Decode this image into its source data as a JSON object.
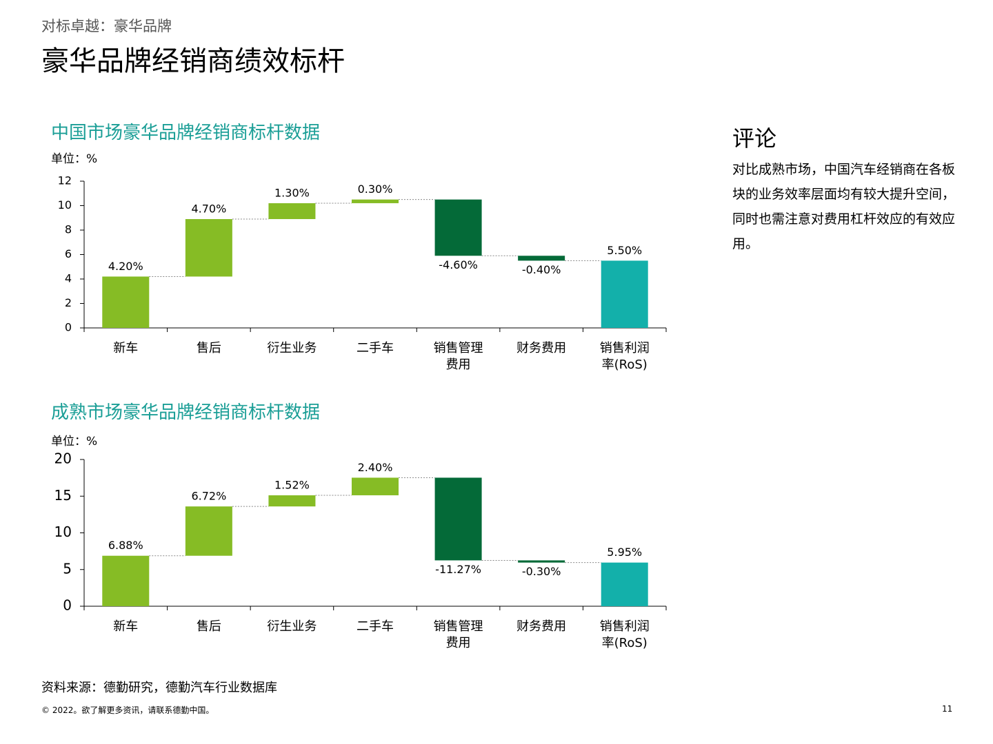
{
  "header": {
    "kicker": "对标卓越：豪华品牌",
    "title": "豪华品牌经销商绩效标杆"
  },
  "commentary": {
    "title": "评论",
    "body": "对比成熟市场，中国汽车经销商在各板块的业务效率层面均有较大提升空间，同时也需注意对费用杠杆效应的有效应用。"
  },
  "source": "资料来源：德勤研究，德勤汽车行业数据库",
  "footer": {
    "copyright": "© 2022。欲了解更多资讯，请联系德勤中国。",
    "page": "11"
  },
  "chart_data": [
    {
      "type": "waterfall",
      "title": "中国市场豪华品牌经销商标杆数据",
      "unit": "单位：%",
      "categories": [
        "新车",
        "售后",
        "衍生业务",
        "二手车",
        "销售管理费用",
        "财务费用",
        "销售利润率(RoS)"
      ],
      "values": [
        4.2,
        4.7,
        1.3,
        0.3,
        -4.6,
        -0.4,
        5.5
      ],
      "value_labels": [
        "4.20%",
        "4.70%",
        "1.30%",
        "0.30%",
        "-4.60%",
        "-0.40%",
        "5.50%"
      ],
      "measure": [
        "relative",
        "relative",
        "relative",
        "relative",
        "relative",
        "relative",
        "total"
      ],
      "colors": {
        "increase": "#86bc25",
        "decrease": "#046a38",
        "total": "#13b0aa"
      },
      "ylim": [
        0,
        12
      ],
      "yticks": [
        0,
        2,
        4,
        6,
        8,
        10,
        12
      ]
    },
    {
      "type": "waterfall",
      "title": "成熟市场豪华品牌经销商标杆数据",
      "unit": "单位：%",
      "categories": [
        "新车",
        "售后",
        "衍生业务",
        "二手车",
        "销售管理费用",
        "财务费用",
        "销售利润率(RoS)"
      ],
      "values": [
        6.88,
        6.72,
        1.52,
        2.4,
        -11.27,
        -0.3,
        5.95
      ],
      "value_labels": [
        "6.88%",
        "6.72%",
        "1.52%",
        "2.40%",
        "-11.27%",
        "-0.30%",
        "5.95%"
      ],
      "measure": [
        "relative",
        "relative",
        "relative",
        "relative",
        "relative",
        "relative",
        "total"
      ],
      "colors": {
        "increase": "#86bc25",
        "decrease": "#046a38",
        "total": "#13b0aa"
      },
      "ylim": [
        0,
        20
      ],
      "yticks": [
        0,
        5,
        10,
        15,
        20
      ]
    }
  ]
}
